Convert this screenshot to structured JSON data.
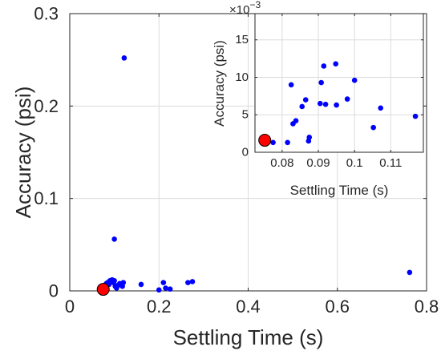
{
  "chart_data": [
    {
      "type": "scatter",
      "panel": "main",
      "title": "",
      "xlabel": "Settling Time (s)",
      "ylabel": "Accuracy (psi)",
      "xlim": [
        0,
        0.8
      ],
      "ylim": [
        0,
        0.3
      ],
      "xticks": [
        "0",
        "0.2",
        "0.4",
        "0.6",
        "0.8"
      ],
      "yticks": [
        "0",
        "0.1",
        "0.2",
        "0.3"
      ],
      "grid": true,
      "series": [
        {
          "color": "#0000ff",
          "marker": "dot",
          "points": [
            [
              0.122,
              0.252
            ],
            [
              0.1,
              0.056
            ],
            [
              0.762,
              0.02
            ],
            [
              0.078,
              0.006
            ],
            [
              0.082,
              0.008
            ],
            [
              0.085,
              0.009
            ],
            [
              0.088,
              0.007
            ],
            [
              0.09,
              0.011
            ],
            [
              0.092,
              0.01
            ],
            [
              0.095,
              0.012
            ],
            [
              0.098,
              0.009
            ],
            [
              0.1,
              0.011
            ],
            [
              0.102,
              0.005
            ],
            [
              0.105,
              0.003
            ],
            [
              0.108,
              0.006
            ],
            [
              0.112,
              0.008
            ],
            [
              0.118,
              0.005
            ],
            [
              0.12,
              0.009
            ],
            [
              0.16,
              0.007
            ],
            [
              0.2,
              0.001
            ],
            [
              0.21,
              0.009
            ],
            [
              0.215,
              0.003
            ],
            [
              0.225,
              0.002
            ],
            [
              0.265,
              0.009
            ],
            [
              0.275,
              0.01
            ]
          ]
        },
        {
          "color": "#ff0000",
          "marker": "large-circle",
          "points": [
            [
              0.075,
              0.0017
            ]
          ]
        }
      ]
    },
    {
      "type": "scatter",
      "panel": "inset",
      "title": "",
      "xlabel": "Settling Time (s)",
      "ylabel": "Accuracy (psi)",
      "y_exponent_base": "×10",
      "y_exponent_power": "−3",
      "xlim": [
        0.0725,
        0.119
      ],
      "ylim": [
        0,
        18.5
      ],
      "xticks": [
        "0.08",
        "0.09",
        "0.1",
        "0.11"
      ],
      "yticks": [
        "0",
        "5",
        "10",
        "15"
      ],
      "grid": true,
      "series": [
        {
          "color": "#0000ff",
          "marker": "dot",
          "points": [
            [
              0.0775,
              1.3
            ],
            [
              0.0815,
              1.3
            ],
            [
              0.0825,
              9.0
            ],
            [
              0.083,
              3.8
            ],
            [
              0.0838,
              4.2
            ],
            [
              0.0855,
              6.1
            ],
            [
              0.0865,
              7.0
            ],
            [
              0.0875,
              2.0
            ],
            [
              0.0873,
              1.5
            ],
            [
              0.0905,
              6.5
            ],
            [
              0.0908,
              9.3
            ],
            [
              0.0915,
              11.5
            ],
            [
              0.092,
              6.4
            ],
            [
              0.0948,
              11.8
            ],
            [
              0.095,
              6.3
            ],
            [
              0.098,
              7.1
            ],
            [
              0.1,
              9.6
            ],
            [
              0.1052,
              3.3
            ],
            [
              0.1072,
              5.9
            ],
            [
              0.1168,
              4.8
            ]
          ]
        },
        {
          "color": "#ff0000",
          "marker": "large-circle",
          "points": [
            [
              0.0752,
              1.6
            ]
          ]
        }
      ]
    }
  ]
}
